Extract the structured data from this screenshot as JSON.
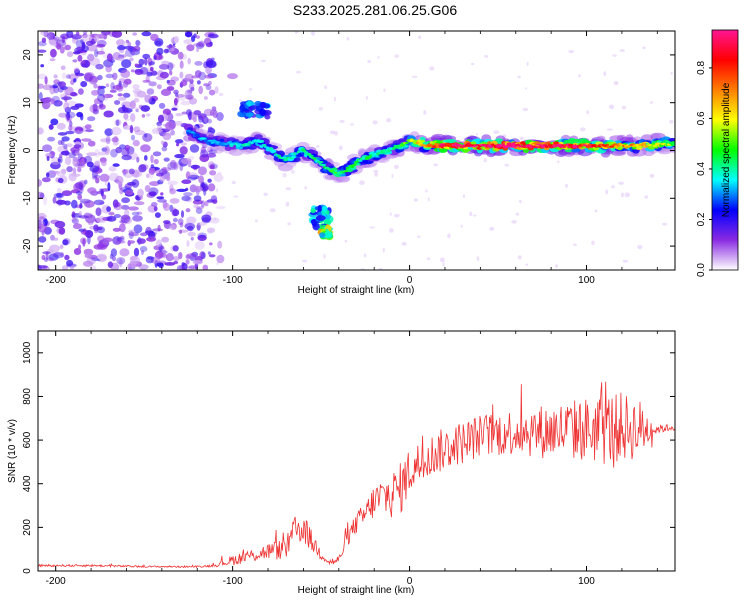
{
  "title": "S233.2025.281.06.25.G06",
  "chart_data": [
    {
      "type": "heatmap",
      "title": "S233.2025.281.06.25.G06",
      "xlabel": "Height of straight line (km)",
      "ylabel": "Frequency (Hz)",
      "xlim": [
        -210,
        150
      ],
      "ylim": [
        -25,
        25
      ],
      "xticks": [
        -200,
        -100,
        0,
        100
      ],
      "yticks": [
        -20,
        -10,
        0,
        10,
        20
      ],
      "colorbar": {
        "label": "Normalized spectral amplitude",
        "range": [
          0,
          0.95
        ],
        "ticks": [
          "0.0",
          "0.2",
          "0.4",
          "0.6",
          "0.8"
        ],
        "tick_values": [
          0,
          0.2,
          0.4,
          0.6,
          0.8
        ],
        "colors": [
          "#ffffff",
          "#8a2be2",
          "#0000ff",
          "#00ffff",
          "#00ff00",
          "#ffff00",
          "#ff7f00",
          "#ff0000",
          "#ff1493"
        ]
      },
      "scatter_region": {
        "x": [
          -210,
          -110
        ],
        "y": [
          -25,
          25
        ],
        "level": 0.08
      },
      "signal_track": [
        [
          -125,
          4
        ],
        [
          -115,
          2
        ],
        [
          -105,
          1.5
        ],
        [
          -95,
          1
        ],
        [
          -85,
          2
        ],
        [
          -78,
          0
        ],
        [
          -70,
          -2
        ],
        [
          -60,
          0
        ],
        [
          -52,
          -2
        ],
        [
          -45,
          -4
        ],
        [
          -40,
          -5
        ],
        [
          -35,
          -4
        ],
        [
          -28,
          -2
        ],
        [
          -20,
          -1
        ],
        [
          -12,
          0
        ],
        [
          -5,
          1
        ],
        [
          0,
          2
        ],
        [
          10,
          1
        ],
        [
          40,
          1
        ],
        [
          70,
          1
        ],
        [
          100,
          1
        ],
        [
          130,
          1
        ],
        [
          150,
          1.5
        ]
      ],
      "track_levels": [
        [
          -125,
          0.3
        ],
        [
          -100,
          0.35
        ],
        [
          -60,
          0.4
        ],
        [
          -40,
          0.45
        ],
        [
          -10,
          0.4
        ],
        [
          0,
          0.55
        ],
        [
          20,
          0.9
        ],
        [
          60,
          0.95
        ],
        [
          100,
          0.85
        ],
        [
          150,
          0.5
        ]
      ],
      "secondary_features": [
        {
          "x": [
            -95,
            -80
          ],
          "y": [
            7,
            10
          ],
          "level": 0.25
        },
        {
          "x": [
            -55,
            -45
          ],
          "y": [
            -16,
            -12
          ],
          "level": 0.3
        },
        {
          "x": [
            -50,
            -45
          ],
          "y": [
            -18,
            -16
          ],
          "level": 0.5
        }
      ]
    },
    {
      "type": "line",
      "xlabel": "Height of straight line (km)",
      "ylabel": "SNR (10 * v/v)",
      "xlim": [
        -210,
        150
      ],
      "ylim": [
        0,
        1100
      ],
      "xticks": [
        -200,
        -100,
        0,
        100
      ],
      "yticks": [
        0,
        200,
        400,
        600,
        800,
        1000
      ],
      "color": "#ee3333",
      "series": [
        {
          "name": "SNR",
          "x": [
            -210,
            -180,
            -150,
            -120,
            -110,
            -100,
            -90,
            -80,
            -70,
            -65,
            -60,
            -55,
            -50,
            -45,
            -40,
            -35,
            -30,
            -25,
            -20,
            -15,
            -10,
            -5,
            0,
            10,
            20,
            30,
            40,
            60,
            80,
            100,
            110,
            120,
            130,
            140,
            150
          ],
          "y": [
            25,
            25,
            20,
            20,
            25,
            50,
            70,
            90,
            100,
            180,
            200,
            130,
            80,
            40,
            50,
            150,
            220,
            260,
            320,
            340,
            350,
            380,
            460,
            520,
            560,
            590,
            620,
            640,
            640,
            650,
            650,
            660,
            650,
            650,
            660
          ],
          "noise": [
            5,
            5,
            4,
            4,
            6,
            25,
            30,
            40,
            50,
            70,
            70,
            50,
            30,
            20,
            20,
            35,
            50,
            60,
            80,
            100,
            110,
            120,
            110,
            100,
            100,
            100,
            100,
            110,
            130,
            150,
            170,
            160,
            140,
            20,
            15
          ]
        }
      ]
    }
  ]
}
